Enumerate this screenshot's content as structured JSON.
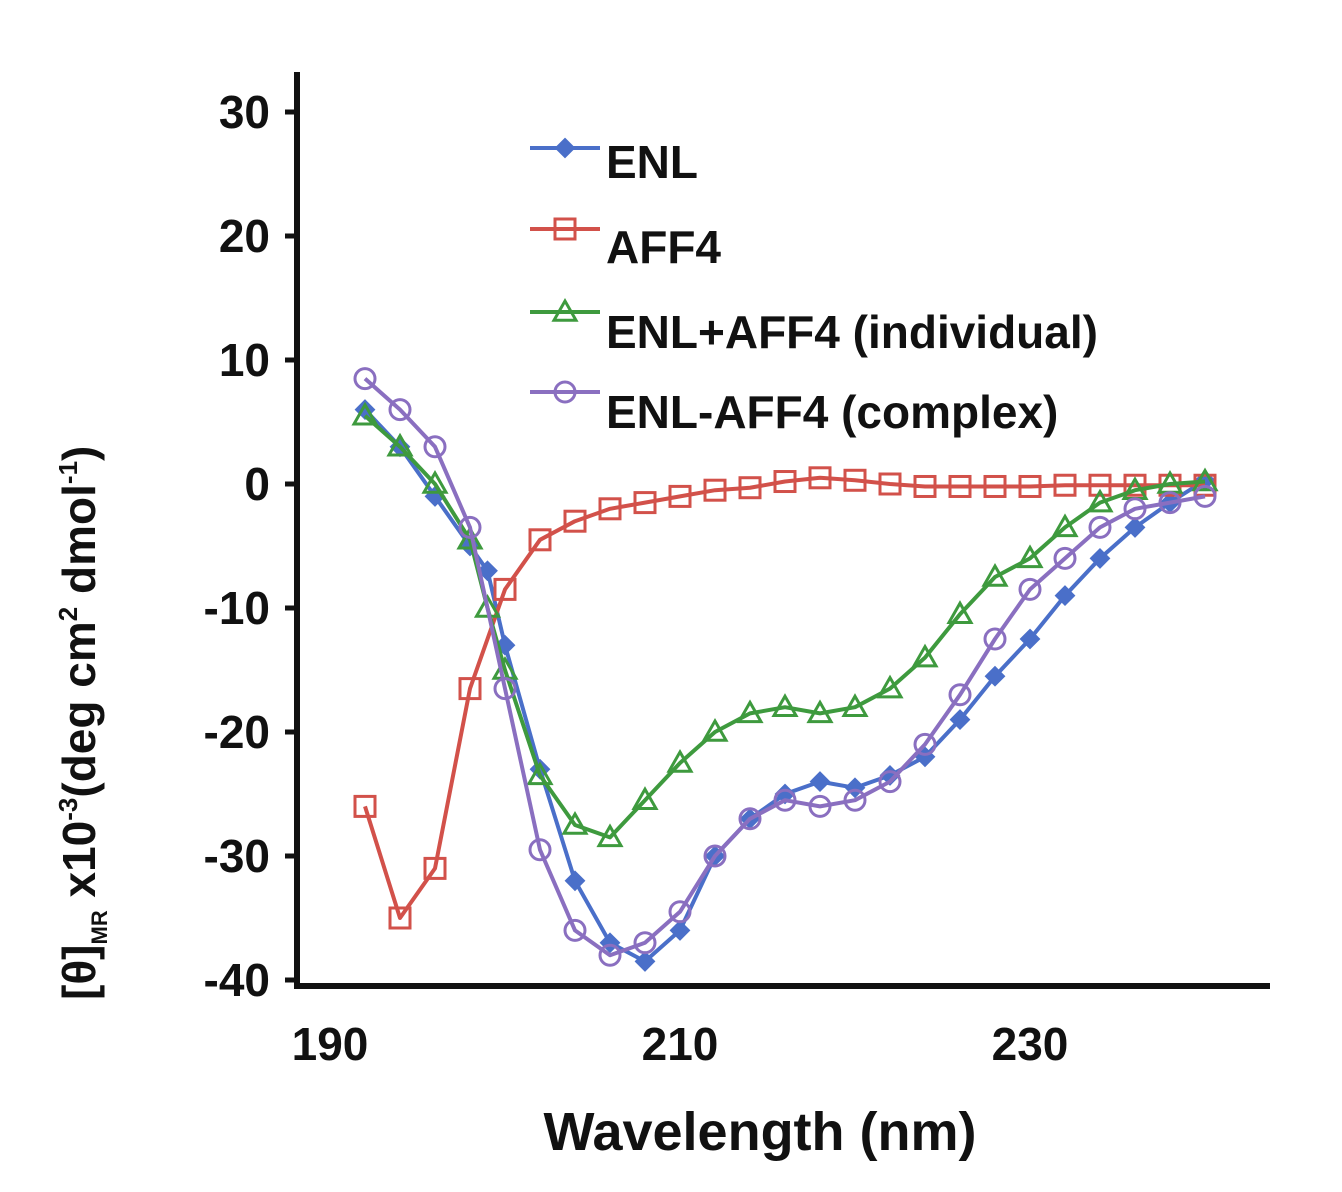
{
  "chart_data": {
    "type": "line",
    "xlabel": "Wavelength (nm)",
    "ylabel": {
      "bracket": "[θ]",
      "subscript": "MR",
      "main1": " x10",
      "sup1": "-3",
      "main2": "(deg cm",
      "sup2": "2",
      "main3": " dmol",
      "sup3": "-1",
      "main4": ")"
    },
    "xlim": [
      190,
      245
    ],
    "ylim": [
      -40,
      30
    ],
    "xticks": [
      190,
      210,
      230
    ],
    "yticks": [
      30,
      20,
      10,
      0,
      -10,
      -20,
      -30,
      -40
    ],
    "grid": false,
    "legend_position": "top-right",
    "series": [
      {
        "name": "ENL",
        "color": "#4a6fc9",
        "marker": "diamond-filled",
        "x": [
          192,
          194,
          196,
          198,
          199,
          200,
          202,
          204,
          206,
          208,
          210,
          212,
          214,
          216,
          218,
          220,
          222,
          224,
          226,
          228,
          230,
          232,
          234,
          236,
          238,
          240
        ],
        "y": [
          6,
          3,
          -1,
          -5,
          -7,
          -13,
          -23,
          -32,
          -37,
          -38.5,
          -36,
          -30,
          -27,
          -25,
          -24,
          -24.5,
          -23.5,
          -22,
          -19,
          -15.5,
          -12.5,
          -9,
          -6,
          -3.5,
          -1.5,
          0.3
        ]
      },
      {
        "name": "AFF4",
        "color": "#d2514a",
        "marker": "square-open",
        "x": [
          192,
          194,
          196,
          198,
          200,
          202,
          204,
          206,
          208,
          210,
          212,
          214,
          216,
          218,
          220,
          222,
          224,
          226,
          228,
          230,
          232,
          234,
          236,
          238,
          240
        ],
        "y": [
          -26,
          -35,
          -31,
          -16.5,
          -8.5,
          -4.5,
          -3,
          -2,
          -1.5,
          -1,
          -0.5,
          -0.3,
          0.2,
          0.5,
          0.3,
          0,
          -0.2,
          -0.2,
          -0.2,
          -0.2,
          -0.1,
          -0.1,
          -0.1,
          -0.1,
          -0.1
        ]
      },
      {
        "name": "ENL+AFF4 (individual)",
        "color": "#3e9a3e",
        "marker": "triangle-open",
        "x": [
          192,
          194,
          196,
          198,
          199,
          200,
          202,
          204,
          206,
          208,
          210,
          212,
          214,
          216,
          218,
          220,
          222,
          224,
          226,
          228,
          230,
          232,
          234,
          236,
          238,
          240
        ],
        "y": [
          5.5,
          3,
          0,
          -4.5,
          -10,
          -15,
          -23.5,
          -27.5,
          -28.5,
          -25.5,
          -22.5,
          -20,
          -18.5,
          -18,
          -18.5,
          -18,
          -16.5,
          -14,
          -10.5,
          -7.5,
          -6,
          -3.5,
          -1.5,
          -0.5,
          0,
          0.2
        ]
      },
      {
        "name": "ENL-AFF4 (complex)",
        "color": "#8a6fc0",
        "marker": "circle-open",
        "x": [
          192,
          194,
          196,
          198,
          200,
          202,
          204,
          206,
          208,
          210,
          212,
          214,
          216,
          218,
          220,
          222,
          224,
          226,
          228,
          230,
          232,
          234,
          236,
          238,
          240
        ],
        "y": [
          8.5,
          6,
          3,
          -3.5,
          -16.5,
          -29.5,
          -36,
          -38,
          -37,
          -34.5,
          -30,
          -27,
          -25.5,
          -26,
          -25.5,
          -24,
          -21,
          -17,
          -12.5,
          -8.5,
          -6,
          -3.5,
          -2,
          -1.5,
          -1
        ]
      }
    ]
  }
}
